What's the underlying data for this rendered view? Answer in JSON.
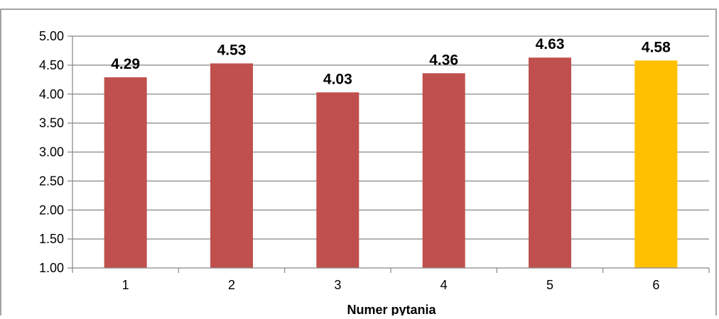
{
  "chart_data": {
    "type": "bar",
    "title": "",
    "xlabel": "Numer pytania",
    "ylabel": "",
    "categories": [
      "1",
      "2",
      "3",
      "4",
      "5",
      "6"
    ],
    "values": [
      4.29,
      4.53,
      4.03,
      4.36,
      4.63,
      4.58
    ],
    "value_labels": [
      "4.29",
      "4.53",
      "4.03",
      "4.36",
      "4.63",
      "4.58"
    ],
    "ylim": [
      1.0,
      5.0
    ],
    "yticks": [
      "1.00",
      "1.50",
      "2.00",
      "2.50",
      "3.00",
      "3.50",
      "4.00",
      "4.50",
      "5.00"
    ],
    "grid": true,
    "legend": "none",
    "colors": {
      "bar": "#C0504D",
      "highlight_bar": "#FFC000",
      "gridline": "#868686",
      "axis": "#868686",
      "border": "#868686"
    },
    "highlight_index": 5
  }
}
